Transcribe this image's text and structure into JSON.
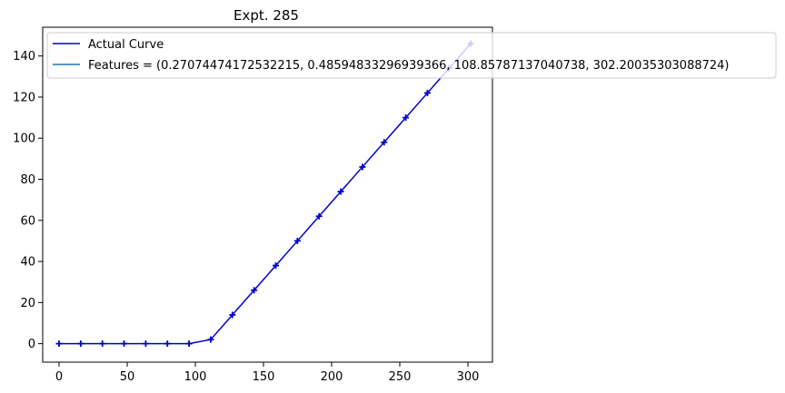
{
  "chart_data": {
    "type": "line",
    "title": "Expt. 285",
    "xlabel": "",
    "ylabel": "",
    "xlim": [
      -12,
      318
    ],
    "ylim": [
      -9,
      154
    ],
    "xticks": [
      0,
      50,
      100,
      150,
      200,
      250,
      300
    ],
    "yticks": [
      0,
      20,
      40,
      60,
      80,
      100,
      120,
      140
    ],
    "grid": false,
    "legend_position": "top-left",
    "series": [
      {
        "name": "Actual Curve",
        "color": "#0000cc",
        "marker": "plus",
        "x": [
          0,
          15.9,
          31.8,
          47.7,
          63.6,
          79.5,
          95.4,
          111.3,
          127.2,
          143.1,
          159.0,
          174.9,
          190.8,
          206.7,
          222.6,
          238.5,
          254.4,
          270.3,
          286.2,
          302.1
        ],
        "y": [
          0,
          0,
          0,
          0,
          0,
          0,
          0,
          2,
          14,
          26,
          38,
          50,
          62,
          74,
          86,
          98,
          110,
          122,
          134,
          146
        ]
      },
      {
        "name": "Features = (0.27074474172532215, 0.48594833296939366, 108.85787137040738, 302.20035303088724)",
        "color": "#1f77b4",
        "x": [],
        "y": []
      }
    ]
  }
}
